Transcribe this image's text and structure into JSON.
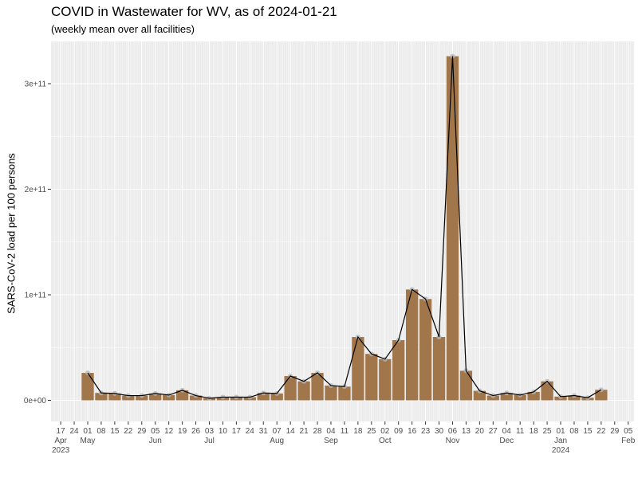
{
  "chart_data": {
    "type": "bar",
    "title": "COVID in Wastewater for WV, as of 2024-01-21",
    "subtitle": "(weekly mean over all facilities)",
    "ylabel": "SARS-CoV-2 load per 100 persons",
    "xlabel": "",
    "ylim": [
      -20000000000.0,
      340000000000.0
    ],
    "xlim": [
      "2023-04-12",
      "2024-02-08"
    ],
    "grid": true,
    "yticks": [
      {
        "value": 0,
        "label": "0e+00"
      },
      {
        "value": 100000000000,
        "label": "1e+11"
      },
      {
        "value": 200000000000,
        "label": "2e+11"
      },
      {
        "value": 300000000000,
        "label": "3e+11"
      }
    ],
    "xticks": [
      {
        "date": "2023-04-17",
        "day": "17",
        "month": "Apr",
        "year": "2023"
      },
      {
        "date": "2023-04-24",
        "day": "24"
      },
      {
        "date": "2023-05-01",
        "day": "01",
        "month": "May"
      },
      {
        "date": "2023-05-08",
        "day": "08"
      },
      {
        "date": "2023-05-15",
        "day": "15"
      },
      {
        "date": "2023-05-22",
        "day": "22"
      },
      {
        "date": "2023-05-29",
        "day": "29"
      },
      {
        "date": "2023-06-05",
        "day": "05",
        "month": "Jun"
      },
      {
        "date": "2023-06-12",
        "day": "12"
      },
      {
        "date": "2023-06-19",
        "day": "19"
      },
      {
        "date": "2023-06-26",
        "day": "26"
      },
      {
        "date": "2023-07-03",
        "day": "03",
        "month": "Jul"
      },
      {
        "date": "2023-07-10",
        "day": "10"
      },
      {
        "date": "2023-07-17",
        "day": "17"
      },
      {
        "date": "2023-07-24",
        "day": "24"
      },
      {
        "date": "2023-07-31",
        "day": "31"
      },
      {
        "date": "2023-08-07",
        "day": "07",
        "month": "Aug"
      },
      {
        "date": "2023-08-14",
        "day": "14"
      },
      {
        "date": "2023-08-21",
        "day": "21"
      },
      {
        "date": "2023-08-28",
        "day": "28"
      },
      {
        "date": "2023-09-04",
        "day": "04",
        "month": "Sep"
      },
      {
        "date": "2023-09-11",
        "day": "11"
      },
      {
        "date": "2023-09-18",
        "day": "18"
      },
      {
        "date": "2023-09-25",
        "day": "25"
      },
      {
        "date": "2023-10-02",
        "day": "02",
        "month": "Oct"
      },
      {
        "date": "2023-10-09",
        "day": "09"
      },
      {
        "date": "2023-10-16",
        "day": "16"
      },
      {
        "date": "2023-10-23",
        "day": "23"
      },
      {
        "date": "2023-10-30",
        "day": "30"
      },
      {
        "date": "2023-11-06",
        "day": "06",
        "month": "Nov"
      },
      {
        "date": "2023-11-13",
        "day": "13"
      },
      {
        "date": "2023-11-20",
        "day": "20"
      },
      {
        "date": "2023-11-27",
        "day": "27"
      },
      {
        "date": "2023-12-04",
        "day": "04",
        "month": "Dec"
      },
      {
        "date": "2023-12-11",
        "day": "11"
      },
      {
        "date": "2023-12-18",
        "day": "18"
      },
      {
        "date": "2023-12-25",
        "day": "25"
      },
      {
        "date": "2024-01-01",
        "day": "01",
        "month": "Jan",
        "year": "2024"
      },
      {
        "date": "2024-01-08",
        "day": "08"
      },
      {
        "date": "2024-01-15",
        "day": "15"
      },
      {
        "date": "2024-01-22",
        "day": "22"
      },
      {
        "date": "2024-01-29",
        "day": "29"
      },
      {
        "date": "2024-02-05",
        "day": "05",
        "month": "Feb"
      }
    ],
    "series": [
      {
        "bars": true,
        "line": true,
        "points": [
          {
            "x": "2023-05-01",
            "y": 26000000000.0
          },
          {
            "x": "2023-05-08",
            "y": 7000000000.0
          },
          {
            "x": "2023-05-15",
            "y": 6500000000.0
          },
          {
            "x": "2023-05-22",
            "y": 4500000000.0
          },
          {
            "x": "2023-05-29",
            "y": 4500000000.0
          },
          {
            "x": "2023-06-05",
            "y": 6500000000.0
          },
          {
            "x": "2023-06-12",
            "y": 5000000000.0
          },
          {
            "x": "2023-06-19",
            "y": 9500000000.0
          },
          {
            "x": "2023-06-26",
            "y": 4500000000.0
          },
          {
            "x": "2023-07-03",
            "y": 2000000000.0
          },
          {
            "x": "2023-07-10",
            "y": 3000000000.0
          },
          {
            "x": "2023-07-17",
            "y": 3000000000.0
          },
          {
            "x": "2023-07-24",
            "y": 3000000000.0
          },
          {
            "x": "2023-07-31",
            "y": 7000000000.0
          },
          {
            "x": "2023-08-07",
            "y": 6500000000.0
          },
          {
            "x": "2023-08-14",
            "y": 23000000000.0
          },
          {
            "x": "2023-08-21",
            "y": 18000000000.0
          },
          {
            "x": "2023-08-28",
            "y": 26000000000.0
          },
          {
            "x": "2023-09-04",
            "y": 14000000000.0
          },
          {
            "x": "2023-09-11",
            "y": 13000000000.0
          },
          {
            "x": "2023-09-18",
            "y": 60000000000.0
          },
          {
            "x": "2023-09-25",
            "y": 44000000000.0
          },
          {
            "x": "2023-10-02",
            "y": 39000000000.0
          },
          {
            "x": "2023-10-09",
            "y": 57000000000.0
          },
          {
            "x": "2023-10-16",
            "y": 105000000000.0
          },
          {
            "x": "2023-10-23",
            "y": 96000000000.0
          },
          {
            "x": "2023-10-30",
            "y": 60000000000.0
          },
          {
            "x": "2023-11-06",
            "y": 326000000000.0
          },
          {
            "x": "2023-11-13",
            "y": 28000000000.0
          },
          {
            "x": "2023-11-20",
            "y": 9000000000.0
          },
          {
            "x": "2023-11-27",
            "y": 4500000000.0
          },
          {
            "x": "2023-12-04",
            "y": 7000000000.0
          },
          {
            "x": "2023-12-11",
            "y": 5000000000.0
          },
          {
            "x": "2023-12-18",
            "y": 8000000000.0
          },
          {
            "x": "2023-12-25",
            "y": 18000000000.0
          },
          {
            "x": "2024-01-01",
            "y": 3500000000.0
          },
          {
            "x": "2024-01-08",
            "y": 4500000000.0
          },
          {
            "x": "2024-01-15",
            "y": 2500000000.0
          },
          {
            "x": "2024-01-22",
            "y": 10000000000.0
          }
        ]
      }
    ],
    "colors": {
      "bar_fill": "#a1764b",
      "line": "#000000",
      "point": "#b8b8b8",
      "panel_bg": "#ebebeb",
      "grid": "#ffffff"
    }
  }
}
